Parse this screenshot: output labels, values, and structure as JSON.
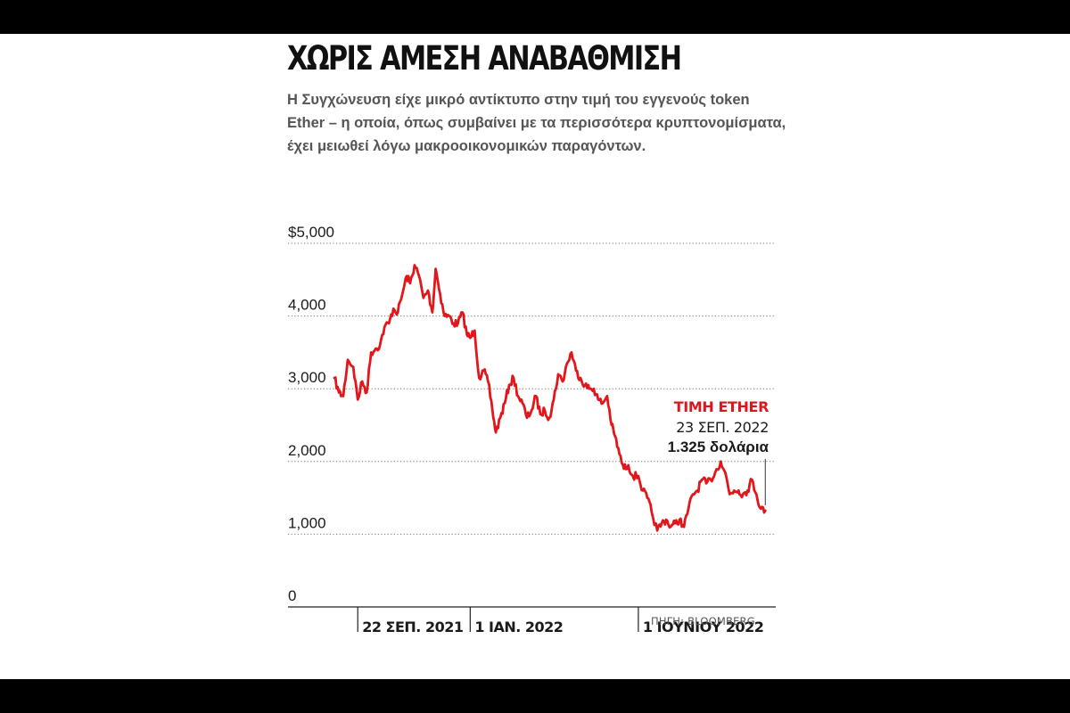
{
  "header": {
    "title": "ΧΩΡΙΣ ΑΜΕΣΗ ΑΝΑΒΑΘΜΙΣΗ",
    "subtitle": "Η Συγχώνευση είχε μικρό αντίκτυπο στην τιμή του εγγενούς token Ether – η οποία, όπως συμβαίνει με τα περισσότερα κρυπτονομίσματα, έχει μειωθεί λόγω μακροοικονομικών παραγόντων."
  },
  "source": "ΠΗΓΗ: BLOOMBERG",
  "colors": {
    "line": "#e2161b",
    "annotation": "#d7191d",
    "text": "#1a1a1a",
    "grid": "#777777"
  },
  "chart_data": {
    "type": "line",
    "ylim": [
      0,
      5000
    ],
    "y_ticks": [
      {
        "value": 5000,
        "label": "$5,000"
      },
      {
        "value": 4000,
        "label": "4,000"
      },
      {
        "value": 3000,
        "label": "3,000"
      },
      {
        "value": 2000,
        "label": "2,000"
      },
      {
        "value": 1000,
        "label": "1,000"
      },
      {
        "value": 0,
        "label": "0"
      }
    ],
    "x_range": [
      "2021-09-01",
      "2022-09-26"
    ],
    "x_ticks": [
      {
        "date": "2021-09-22",
        "label": "22 ΣΕΠ. 2021"
      },
      {
        "date": "2022-01-01",
        "label": "1 ΙΑΝ. 2022"
      },
      {
        "date": "2022-06-01",
        "label": "1 ΙΟΥΝΙΟΥ 2022"
      }
    ],
    "grid": true,
    "series": [
      {
        "x": [
          "2021-09-01",
          "2021-09-05",
          "2021-09-09",
          "2021-09-13",
          "2021-09-18",
          "2021-09-22",
          "2021-09-26",
          "2021-09-30",
          "2021-10-04",
          "2021-10-08",
          "2021-10-12",
          "2021-10-16",
          "2021-10-20",
          "2021-10-24",
          "2021-10-28",
          "2021-11-01",
          "2021-11-05",
          "2021-11-08",
          "2021-11-12",
          "2021-11-16",
          "2021-11-20",
          "2021-11-24",
          "2021-11-28",
          "2021-12-01",
          "2021-12-05",
          "2021-12-09",
          "2021-12-13",
          "2021-12-17",
          "2021-12-21",
          "2021-12-25",
          "2021-12-29",
          "2022-01-01",
          "2022-01-05",
          "2022-01-09",
          "2022-01-13",
          "2022-01-17",
          "2022-01-21",
          "2022-01-24",
          "2022-01-28",
          "2022-02-01",
          "2022-02-05",
          "2022-02-09",
          "2022-02-13",
          "2022-02-17",
          "2022-02-21",
          "2022-02-25",
          "2022-03-01",
          "2022-03-05",
          "2022-03-09",
          "2022-03-13",
          "2022-03-17",
          "2022-03-21",
          "2022-03-25",
          "2022-03-29",
          "2022-04-02",
          "2022-04-06",
          "2022-04-10",
          "2022-04-14",
          "2022-04-18",
          "2022-04-22",
          "2022-04-26",
          "2022-04-30",
          "2022-05-04",
          "2022-05-08",
          "2022-05-11",
          "2022-05-15",
          "2022-05-19",
          "2022-05-23",
          "2022-05-27",
          "2022-06-01",
          "2022-06-05",
          "2022-06-09",
          "2022-06-13",
          "2022-06-18",
          "2022-06-22",
          "2022-06-26",
          "2022-06-30",
          "2022-07-04",
          "2022-07-08",
          "2022-07-12",
          "2022-07-16",
          "2022-07-20",
          "2022-07-24",
          "2022-07-28",
          "2022-08-01",
          "2022-08-05",
          "2022-08-09",
          "2022-08-14",
          "2022-08-18",
          "2022-08-22",
          "2022-08-26",
          "2022-08-30",
          "2022-09-03",
          "2022-09-07",
          "2022-09-11",
          "2022-09-15",
          "2022-09-19",
          "2022-09-23"
        ],
        "y": [
          3150,
          2950,
          2900,
          3400,
          3300,
          2850,
          3100,
          2950,
          3500,
          3550,
          3600,
          3850,
          3900,
          4100,
          4050,
          4300,
          4550,
          4450,
          4700,
          4550,
          4250,
          4350,
          4050,
          4650,
          4300,
          4000,
          4000,
          3900,
          3900,
          4050,
          3750,
          3700,
          3800,
          3150,
          3250,
          3100,
          2700,
          2400,
          2600,
          2800,
          3050,
          3150,
          2900,
          2800,
          2600,
          2700,
          2900,
          2650,
          2700,
          2600,
          2850,
          3200,
          3100,
          3350,
          3500,
          3250,
          3150,
          3050,
          3000,
          3000,
          2850,
          2800,
          2900,
          2500,
          2350,
          2100,
          1900,
          1950,
          1800,
          1800,
          1600,
          1500,
          1300,
          1050,
          1150,
          1200,
          1100,
          1150,
          1200,
          1100,
          1350,
          1550,
          1600,
          1750,
          1700,
          1750,
          1850,
          2000,
          1850,
          1550,
          1600,
          1600,
          1550,
          1600,
          1750,
          1550,
          1350,
          1325
        ]
      }
    ],
    "annotation": {
      "title": "ΤΙΜΗ ETHER",
      "date": "23 ΣΕΠ. 2022",
      "value_text": "1.325 δολάρια",
      "x": "2022-09-23",
      "y": 1325
    }
  }
}
